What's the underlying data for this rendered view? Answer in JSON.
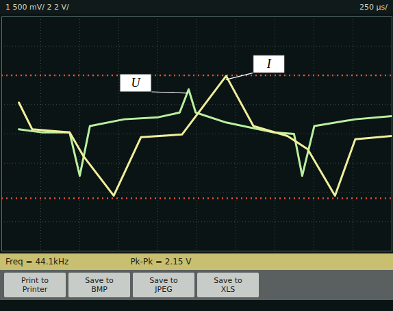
{
  "chart_data": {
    "type": "line",
    "header_left": "1 500 mV/ 2 2 V/",
    "header_right": "250 µs/",
    "series": [
      {
        "name": "U",
        "color": "#b8f0a0",
        "x": [
          0.44,
          1.05,
          1.74,
          2.0,
          2.26,
          3.14,
          4.01,
          4.56,
          4.79,
          4.97,
          5.75,
          6.97,
          7.49,
          7.7,
          8.01,
          9.06,
          10
        ],
        "values": [
          0.16,
          0.05,
          0.05,
          -1.43,
          0.27,
          0.5,
          0.57,
          0.73,
          1.52,
          0.73,
          0.39,
          0.05,
          0,
          -1.43,
          0.27,
          0.5,
          0.61
        ]
      },
      {
        "name": "I",
        "color": "#f0ee9a",
        "x": [
          0.44,
          0.78,
          1.74,
          2.09,
          2.87,
          3.57,
          4.62,
          5.75,
          6.45,
          7.32,
          7.84,
          8.54,
          9.06,
          10
        ],
        "values": [
          1.07,
          0.16,
          0.05,
          -0.75,
          -2.11,
          -0.11,
          -0.02,
          1.98,
          0.27,
          -0.07,
          -0.52,
          -2.11,
          -0.18,
          -0.07
        ]
      }
    ],
    "cursors": [
      2,
      -2.2
    ],
    "xlim": [
      0,
      10
    ],
    "ylim": [
      -4,
      4
    ],
    "xticks": [
      0,
      1,
      2,
      3,
      4,
      5,
      6,
      7,
      8,
      9,
      10
    ],
    "yticks": [
      -4,
      -3,
      -2,
      -1,
      0,
      1,
      2,
      3,
      4
    ],
    "grid": true,
    "tick_labels": false,
    "measurements": [
      "Freq = 44.1kHz",
      "Pk-Pk = 2.15 V"
    ],
    "buttons": [
      "Print to Printer",
      "Save to BMP",
      "Save to JPEG",
      "Save to XLS"
    ]
  }
}
